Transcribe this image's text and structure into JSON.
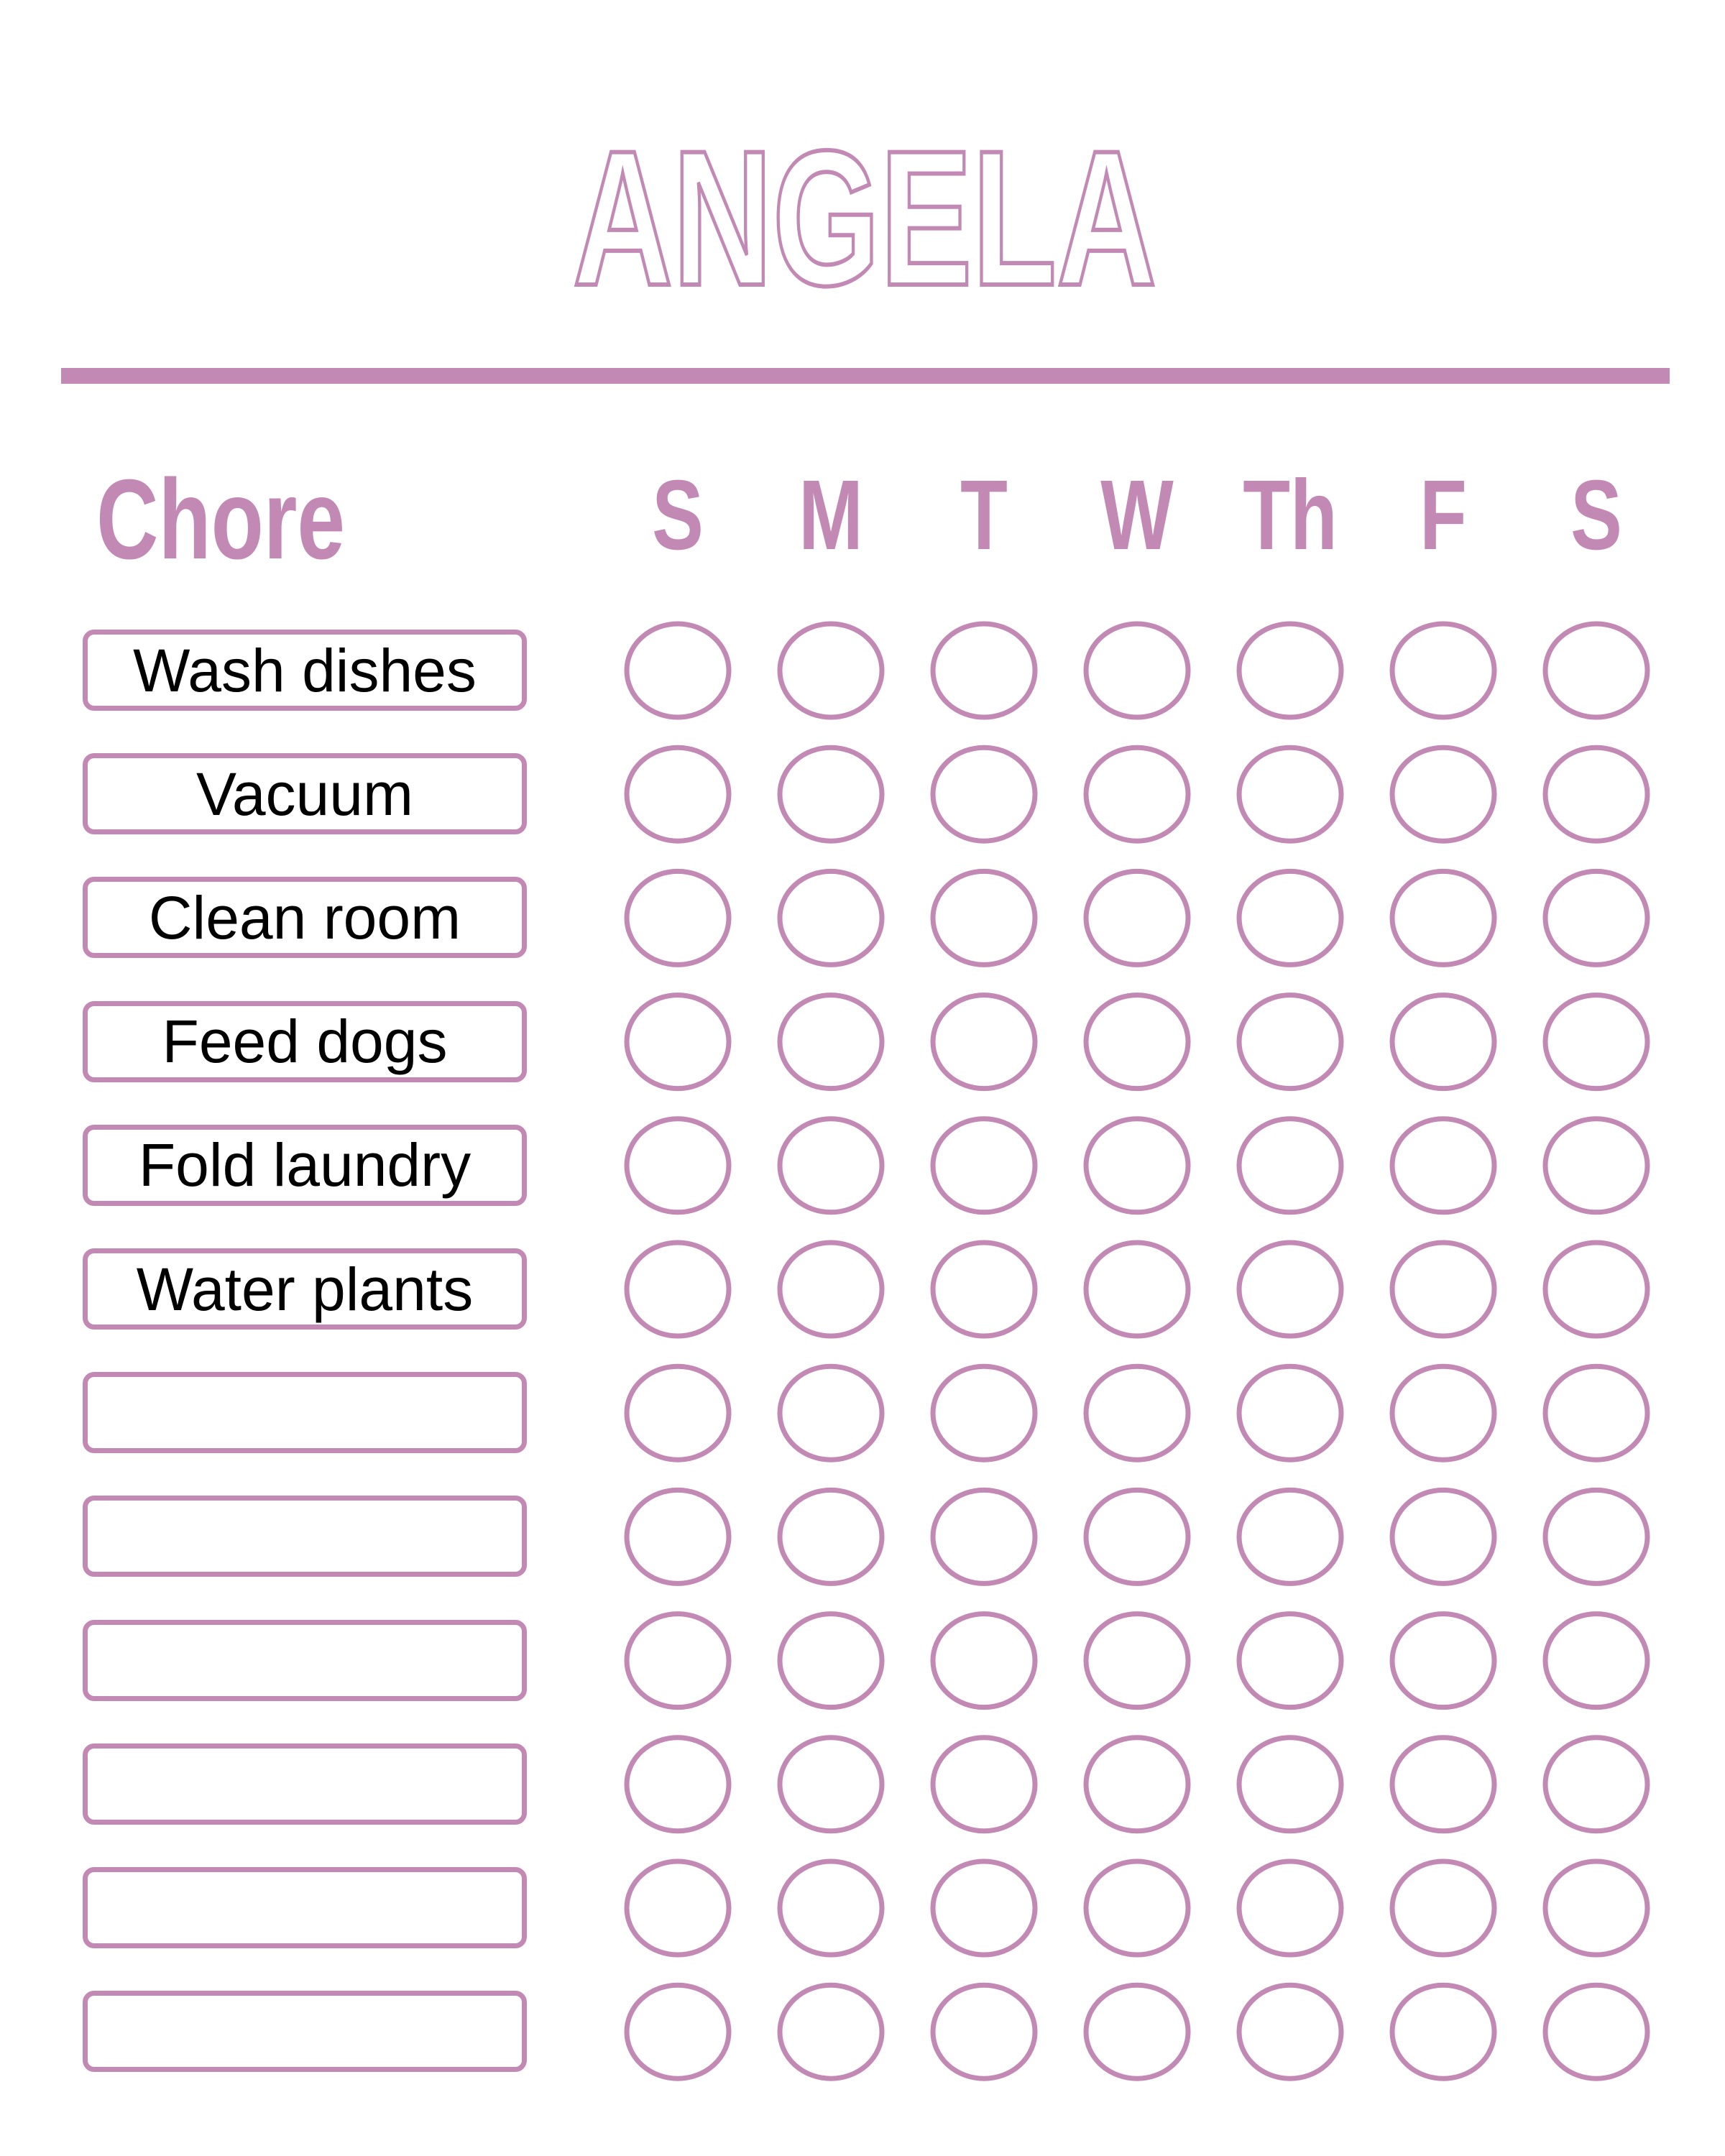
{
  "title": "ANGELA",
  "chore_header": "Chore",
  "accent_color": "#c389b5",
  "days": [
    "S",
    "M",
    "T",
    "W",
    "Th",
    "F",
    "S"
  ],
  "chores": [
    {
      "label": "Wash dishes"
    },
    {
      "label": "Vacuum"
    },
    {
      "label": "Clean room"
    },
    {
      "label": "Feed dogs"
    },
    {
      "label": "Fold laundry"
    },
    {
      "label": "Water plants"
    },
    {
      "label": ""
    },
    {
      "label": ""
    },
    {
      "label": ""
    },
    {
      "label": ""
    },
    {
      "label": ""
    },
    {
      "label": ""
    }
  ],
  "checkmarks": "all-empty"
}
